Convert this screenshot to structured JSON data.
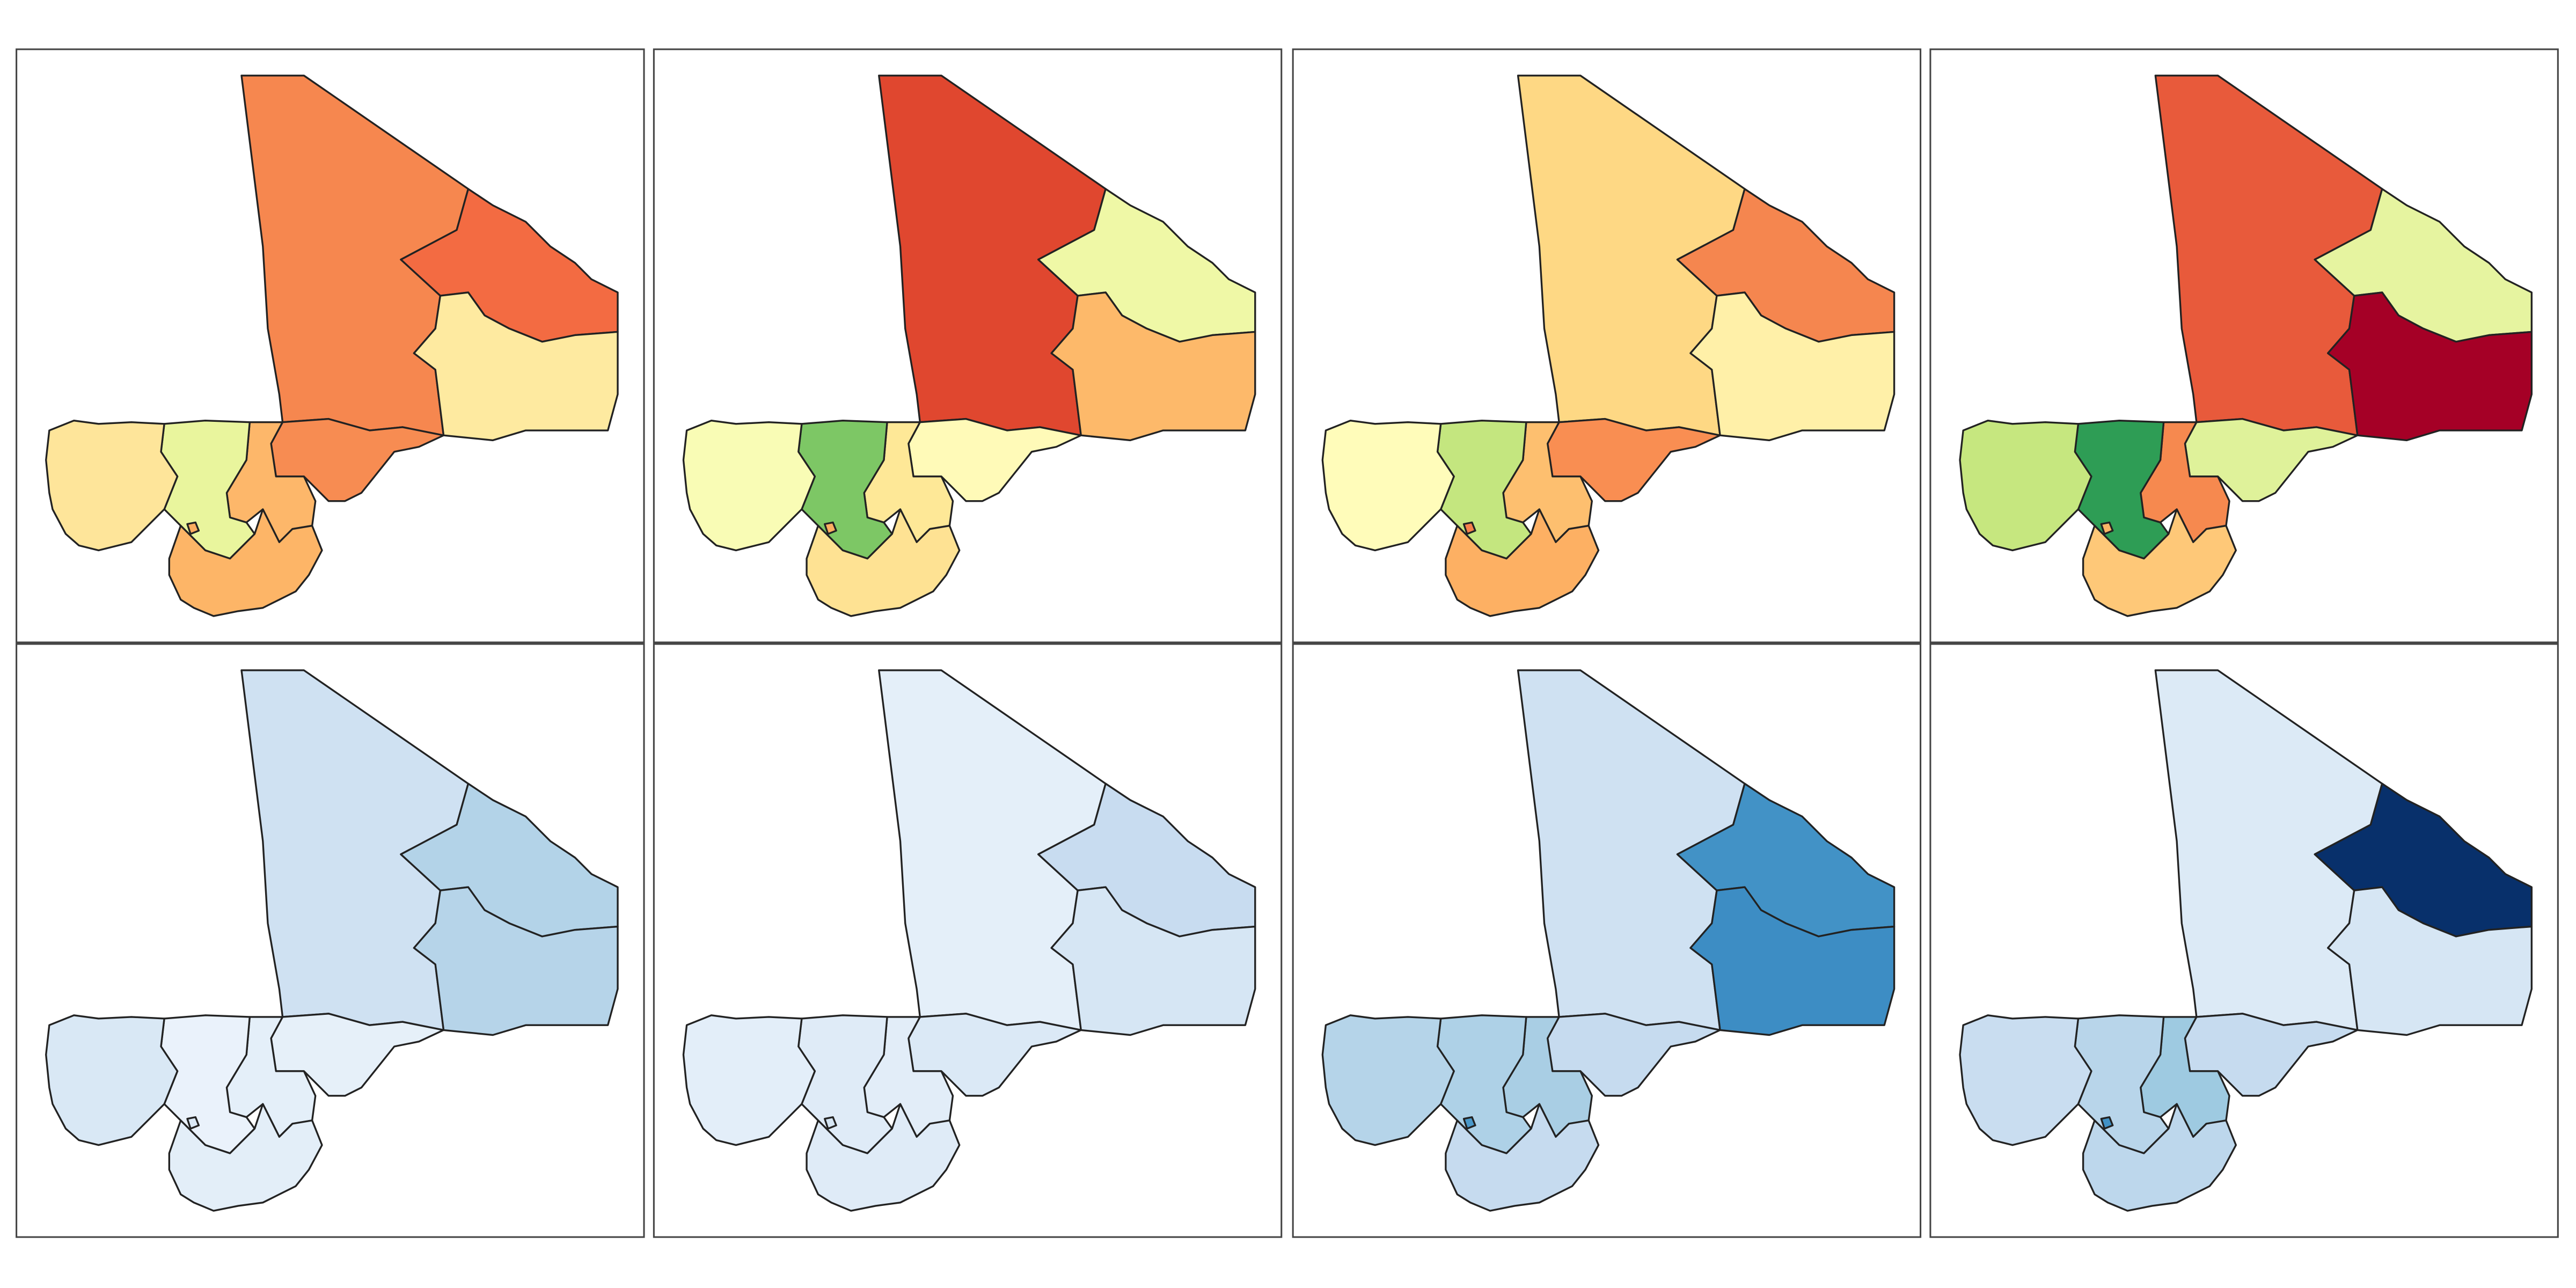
{
  "panels": [
    {
      "regions": [
        "#f6874f",
        "#f36b42",
        "#feeaa0",
        "#f78c52",
        "#fdb76a",
        "#e9f59d",
        "#fee59a",
        "#fdb567",
        "#fdad60"
      ]
    },
    {
      "regions": [
        "#e0472f",
        "#eff8a6",
        "#fdb96a",
        "#fffab8",
        "#fee897",
        "#7dc765",
        "#f9fcb5",
        "#fee293",
        "#fdae61"
      ]
    },
    {
      "regions": [
        "#fed884",
        "#f5864f",
        "#fff0a8",
        "#f98e52",
        "#fdbf6f",
        "#c4e67f",
        "#fffcba",
        "#fdb063",
        "#f7814c"
      ]
    },
    {
      "regions": [
        "#e85a3b",
        "#e6f4a0",
        "#a50026",
        "#dff29a",
        "#f6894f",
        "#2e9d55",
        "#c6e77f",
        "#fec878",
        "#fdb466"
      ]
    },
    {
      "regions": [
        "#cfe1f2",
        "#b3d3e8",
        "#b6d4e9",
        "#e6f0f9",
        "#e4eff9",
        "#eaf2fb",
        "#d9e8f5",
        "#e3eef8",
        "#dbe9f6"
      ]
    },
    {
      "regions": [
        "#e4eff9",
        "#c8dcf0",
        "#d6e6f4",
        "#dbe9f6",
        "#e2edf8",
        "#dfebf7",
        "#e3eef9",
        "#dfebf7",
        "#d6e6f4"
      ]
    },
    {
      "regions": [
        "#cfe1f2",
        "#4292c6",
        "#3d8dc4",
        "#c6dbef",
        "#a9cee4",
        "#aed1e7",
        "#b5d4e9",
        "#c6dbef",
        "#4a98c9"
      ]
    },
    {
      "regions": [
        "#dceaf6",
        "#08306b",
        "#d6e6f4",
        "#c6dbef",
        "#9ecae1",
        "#b8d5ea",
        "#c9ddf0",
        "#bdd7ec",
        "#4292c6"
      ]
    }
  ]
}
